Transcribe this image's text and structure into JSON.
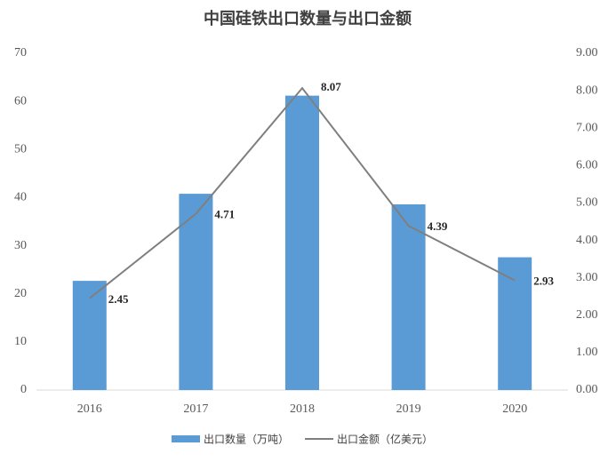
{
  "chart_data": {
    "type": "bar",
    "title": "中国硅铁出口数量与出口金额",
    "categories": [
      "2016",
      "2017",
      "2018",
      "2019",
      "2020"
    ],
    "series": [
      {
        "name": "出口数量（万吨）",
        "type": "bar",
        "color": "#5b9bd5",
        "values": [
          22.7,
          40.8,
          61.2,
          38.6,
          27.6
        ]
      },
      {
        "name": "出口金额（亿美元）",
        "type": "line",
        "axis": "y2",
        "color": "#7f7f7f",
        "values": [
          2.45,
          4.71,
          8.07,
          4.39,
          2.93
        ]
      }
    ],
    "ylim": [
      0,
      70
    ],
    "yticks": [
      0,
      10,
      20,
      30,
      40,
      50,
      60,
      70
    ],
    "y2lim": [
      0,
      9
    ],
    "y2ticks": [
      {
        "value": 0,
        "label": "0.00"
      },
      {
        "value": 1,
        "label": "1.00"
      },
      {
        "value": 2,
        "label": "2.00"
      },
      {
        "value": 3,
        "label": "3.00"
      },
      {
        "value": 4,
        "label": "4.00"
      },
      {
        "value": 5,
        "label": "5.00"
      },
      {
        "value": 6,
        "label": "6.00"
      },
      {
        "value": 7,
        "label": "7.00"
      },
      {
        "value": 8,
        "label": "8.00"
      },
      {
        "value": 9,
        "label": "9.00"
      }
    ],
    "legend": "bottom"
  }
}
